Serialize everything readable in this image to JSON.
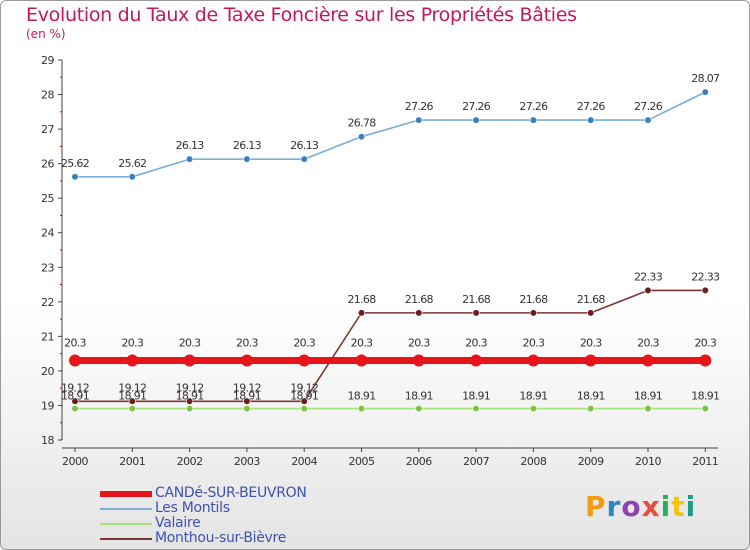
{
  "header": {
    "title": "Evolution du Taux de Taxe Foncière sur les Propriétés Bâties",
    "unit": "(en %)"
  },
  "brand": {
    "text": "Proxiti",
    "colors": [
      "#f39c12",
      "#2e86c1",
      "#8e44ad",
      "#e74c3c",
      "#27ae60",
      "#f1c40f",
      "#16a085"
    ]
  },
  "chart_data": {
    "type": "line",
    "categories": [
      "2000",
      "2001",
      "2002",
      "2003",
      "2004",
      "2005",
      "2006",
      "2007",
      "2008",
      "2009",
      "2010",
      "2011"
    ],
    "ylim": [
      18,
      29
    ],
    "yticks": [
      18,
      19,
      20,
      21,
      22,
      23,
      24,
      25,
      26,
      27,
      28,
      29
    ],
    "grid": false,
    "legend_position": "bottom-left",
    "series": [
      {
        "name": "CANDé-SUR-BEUVRON",
        "color": "#e8141b",
        "marker": "#e8141b",
        "values": [
          20.3,
          20.3,
          20.3,
          20.3,
          20.3,
          20.3,
          20.3,
          20.3,
          20.3,
          20.3,
          20.3,
          20.3
        ],
        "labels": [
          "20.3",
          "20.3",
          "20.3",
          "20.3",
          "20.3",
          "20.3",
          "20.3",
          "20.3",
          "20.3",
          "20.3",
          "20.3",
          "20.3"
        ]
      },
      {
        "name": "Les Montils",
        "color": "#7aaed6",
        "marker": "#3a80c0",
        "values": [
          25.62,
          25.62,
          26.13,
          26.13,
          26.13,
          26.78,
          27.26,
          27.26,
          27.26,
          27.26,
          27.26,
          28.07
        ],
        "labels": [
          "25.62",
          "25.62",
          "26.13",
          "26.13",
          "26.13",
          "26.78",
          "27.26",
          "27.26",
          "27.26",
          "27.26",
          "27.26",
          "28.07"
        ]
      },
      {
        "name": "Valaire",
        "color": "#a6e27a",
        "marker": "#7dc242",
        "values": [
          18.91,
          18.91,
          18.91,
          18.91,
          18.91,
          18.91,
          18.91,
          18.91,
          18.91,
          18.91,
          18.91,
          18.91
        ],
        "labels": [
          "18.91",
          "18.91",
          "18.91",
          "18.91",
          "18.91",
          "18.91",
          "18.91",
          "18.91",
          "18.91",
          "18.91",
          "18.91",
          "18.91"
        ]
      },
      {
        "name": "Monthou-sur-Bièvre",
        "color": "#7a3535",
        "marker": "#6b1f1f",
        "values": [
          19.12,
          19.12,
          19.12,
          19.12,
          19.12,
          21.68,
          21.68,
          21.68,
          21.68,
          21.68,
          22.33,
          22.33
        ],
        "labels": [
          "19.12",
          "19.12",
          "19.12",
          "19.12",
          "19.12",
          "21.68",
          "21.68",
          "21.68",
          "21.68",
          "21.68",
          "22.33",
          "22.33"
        ]
      }
    ]
  }
}
